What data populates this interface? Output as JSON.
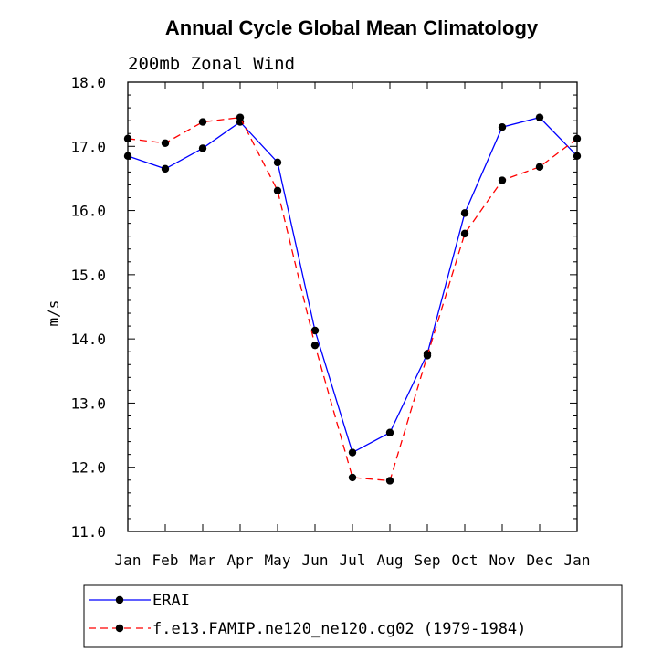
{
  "chart_data": {
    "type": "line",
    "title": "Annual Cycle Global Mean Climatology",
    "subtitle": "200mb Zonal Wind",
    "xlabel": "",
    "ylabel": "m/s",
    "categories": [
      "Jan",
      "Feb",
      "Mar",
      "Apr",
      "May",
      "Jun",
      "Jul",
      "Aug",
      "Sep",
      "Oct",
      "Nov",
      "Dec",
      "Jan"
    ],
    "ylim": [
      11.0,
      18.0
    ],
    "yticks": [
      "11.0",
      "12.0",
      "13.0",
      "14.0",
      "15.0",
      "16.0",
      "17.0",
      "18.0"
    ],
    "legend_position": "bottom",
    "grid": false,
    "series": [
      {
        "name": "ERAI",
        "color": "#0000ff",
        "style": "solid",
        "values": [
          16.85,
          16.65,
          16.97,
          17.38,
          16.75,
          14.13,
          12.23,
          12.54,
          13.77,
          15.96,
          17.3,
          17.45,
          16.85
        ]
      },
      {
        "name": "f.e13.FAMIP.ne120_ne120.cg02 (1979-1984)",
        "color": "#ff0000",
        "style": "dashed",
        "values": [
          17.12,
          17.05,
          17.38,
          17.45,
          16.31,
          13.9,
          11.84,
          11.79,
          13.74,
          15.64,
          16.47,
          16.68,
          17.12
        ]
      }
    ]
  }
}
